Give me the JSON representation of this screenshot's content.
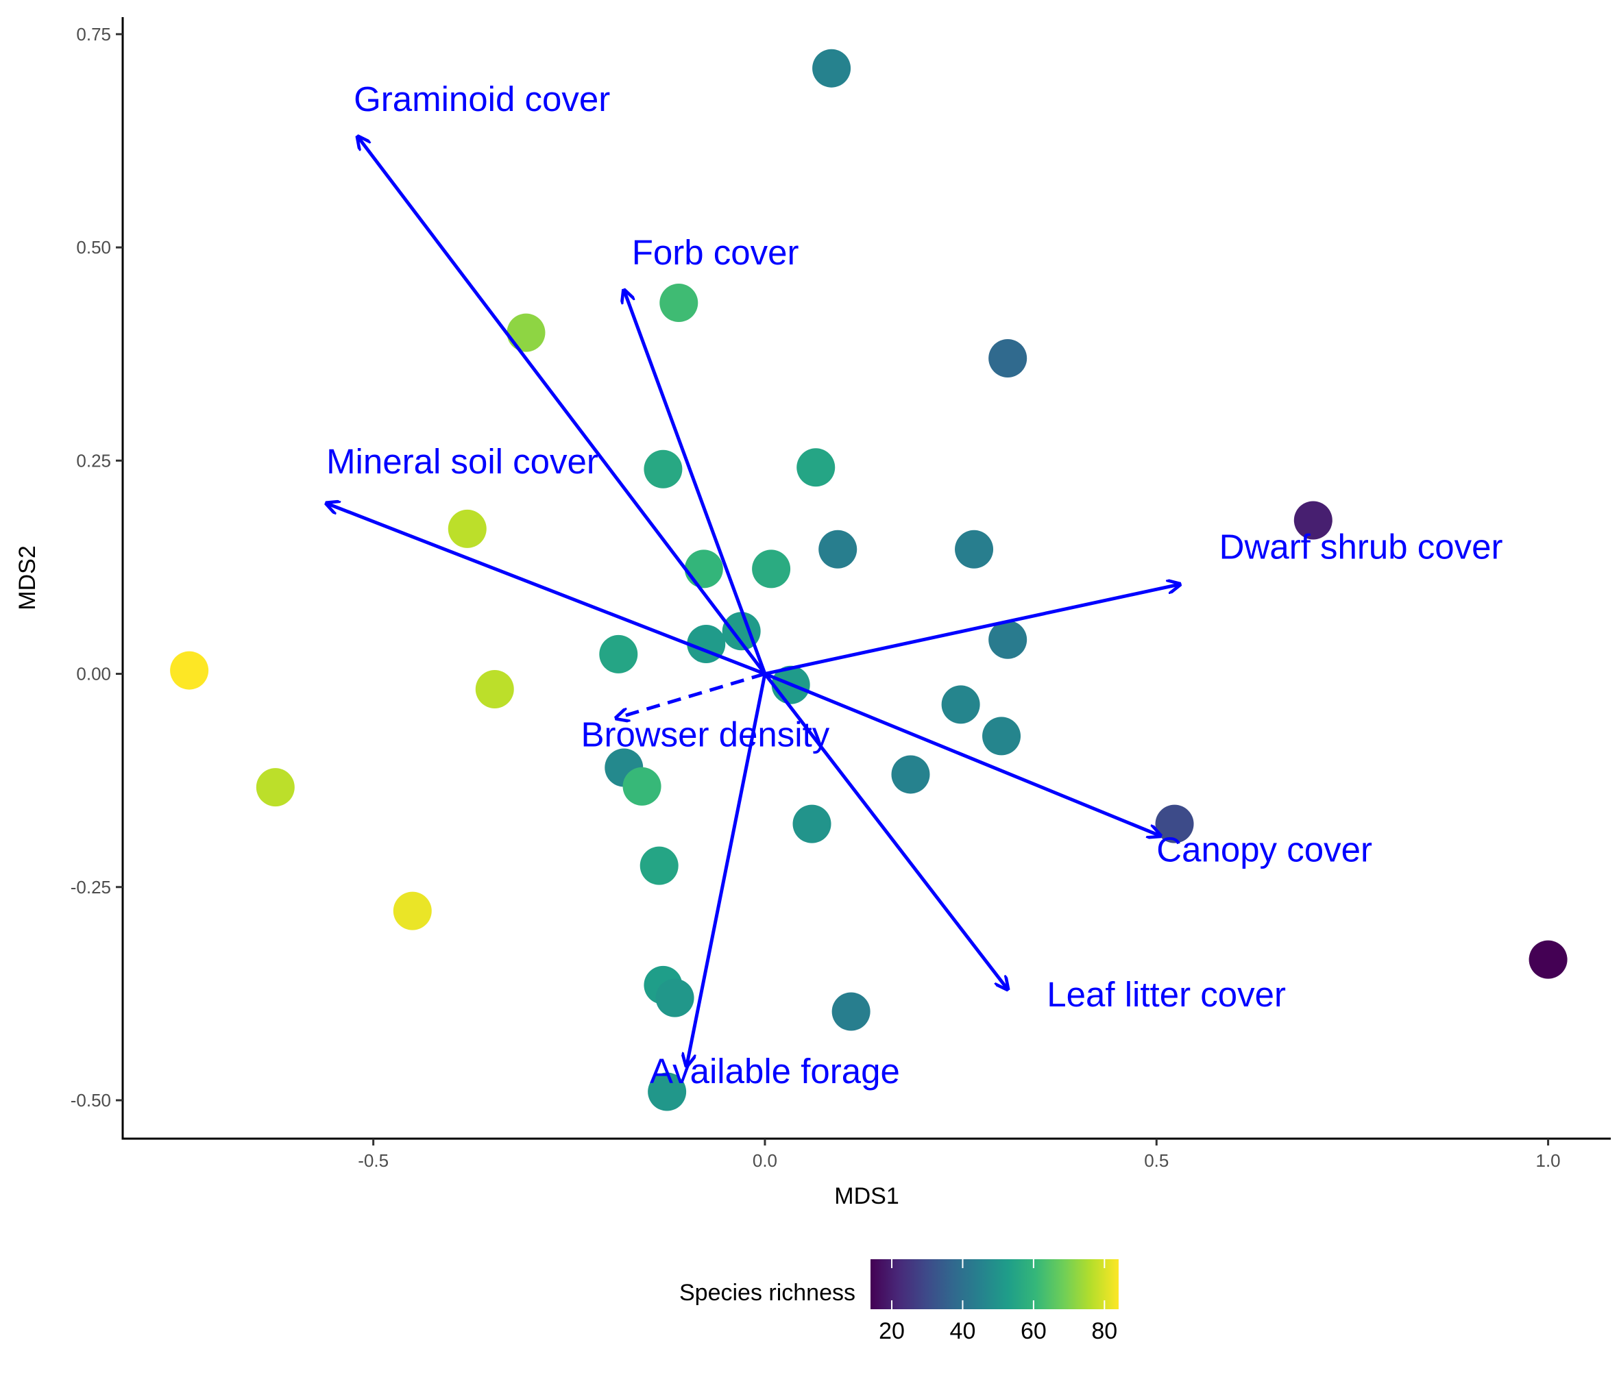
{
  "chart_data": {
    "type": "scatter",
    "xlabel": "MDS1",
    "ylabel": "MDS2",
    "xlim": [
      -0.82,
      1.08
    ],
    "ylim": [
      -0.545,
      0.77
    ],
    "x_ticks": [
      -0.5,
      0.0,
      0.5,
      1.0
    ],
    "x_tick_labels": [
      "-0.5",
      "0.0",
      "0.5",
      "1.0"
    ],
    "y_ticks": [
      -0.5,
      -0.25,
      0.0,
      0.25,
      0.5,
      0.75
    ],
    "y_tick_labels": [
      "-0.50",
      "-0.25",
      "0.00",
      "0.25",
      "0.50",
      "0.75"
    ],
    "grid": false,
    "points": [
      {
        "x": 0.085,
        "y": 0.71,
        "richness": 45
      },
      {
        "x": -0.11,
        "y": 0.435,
        "richness": 62
      },
      {
        "x": -0.305,
        "y": 0.4,
        "richness": 72
      },
      {
        "x": 0.31,
        "y": 0.37,
        "richness": 38
      },
      {
        "x": -0.13,
        "y": 0.24,
        "richness": 56
      },
      {
        "x": 0.065,
        "y": 0.242,
        "richness": 55
      },
      {
        "x": -0.38,
        "y": 0.17,
        "richness": 77
      },
      {
        "x": 0.093,
        "y": 0.146,
        "richness": 44
      },
      {
        "x": 0.267,
        "y": 0.146,
        "richness": 44
      },
      {
        "x": 0.7,
        "y": 0.18,
        "richness": 20
      },
      {
        "x": -0.078,
        "y": 0.123,
        "richness": 60
      },
      {
        "x": 0.008,
        "y": 0.123,
        "richness": 57
      },
      {
        "x": -0.03,
        "y": 0.05,
        "richness": 52
      },
      {
        "x": -0.075,
        "y": 0.035,
        "richness": 52
      },
      {
        "x": -0.187,
        "y": 0.023,
        "richness": 55
      },
      {
        "x": 0.31,
        "y": 0.04,
        "richness": 43
      },
      {
        "x": 0.033,
        "y": -0.013,
        "richness": 52
      },
      {
        "x": -0.735,
        "y": 0.004,
        "richness": 84
      },
      {
        "x": -0.345,
        "y": -0.018,
        "richness": 77
      },
      {
        "x": 0.25,
        "y": -0.036,
        "richness": 46
      },
      {
        "x": 0.302,
        "y": -0.073,
        "richness": 46
      },
      {
        "x": -0.18,
        "y": -0.11,
        "richness": 47
      },
      {
        "x": -0.157,
        "y": -0.132,
        "richness": 61
      },
      {
        "x": 0.186,
        "y": -0.118,
        "richness": 45
      },
      {
        "x": -0.625,
        "y": -0.133,
        "richness": 77
      },
      {
        "x": 0.06,
        "y": -0.176,
        "richness": 50
      },
      {
        "x": 0.523,
        "y": -0.176,
        "richness": 30
      },
      {
        "x": -0.135,
        "y": -0.225,
        "richness": 55
      },
      {
        "x": -0.45,
        "y": -0.278,
        "richness": 82
      },
      {
        "x": 1.0,
        "y": -0.335,
        "richness": 14
      },
      {
        "x": -0.13,
        "y": -0.365,
        "richness": 53
      },
      {
        "x": -0.115,
        "y": -0.38,
        "richness": 51
      },
      {
        "x": 0.11,
        "y": -0.396,
        "richness": 44
      },
      {
        "x": -0.125,
        "y": -0.49,
        "richness": 51
      }
    ],
    "vectors": [
      {
        "label": "Graminoid cover",
        "x": -0.52,
        "y": 0.63,
        "dashed": false,
        "label_x": -0.525,
        "label_y": 0.66
      },
      {
        "label": "Forb cover",
        "x": -0.18,
        "y": 0.45,
        "dashed": false,
        "label_x": -0.17,
        "label_y": 0.48
      },
      {
        "label": "Mineral soil cover",
        "x": -0.56,
        "y": 0.2,
        "dashed": false,
        "label_x": -0.56,
        "label_y": 0.235
      },
      {
        "label": "Dwarf shrub cover",
        "x": 0.53,
        "y": 0.105,
        "dashed": false,
        "label_x": 0.58,
        "label_y": 0.135
      },
      {
        "label": "Browser density",
        "x": -0.19,
        "y": -0.052,
        "dashed": true,
        "label_x": -0.235,
        "label_y": -0.085
      },
      {
        "label": "Canopy cover",
        "x": 0.505,
        "y": -0.19,
        "dashed": false,
        "label_x": 0.5,
        "label_y": -0.22
      },
      {
        "label": "Leaf litter cover",
        "x": 0.31,
        "y": -0.37,
        "dashed": false,
        "label_x": 0.36,
        "label_y": -0.39
      },
      {
        "label": "Available forage",
        "x": -0.1,
        "y": -0.46,
        "dashed": false,
        "label_x": -0.147,
        "label_y": -0.48
      }
    ],
    "vector_color": "#0000ff",
    "legend": {
      "title": "Species richness",
      "placement": "bottom",
      "min": 14,
      "max": 84,
      "ticks": [
        20,
        40,
        60,
        80
      ],
      "tick_labels": [
        "20",
        "40",
        "60",
        "80"
      ],
      "palette": [
        "#440154",
        "#482878",
        "#3e4989",
        "#31688e",
        "#26828e",
        "#1f9e89",
        "#35b779",
        "#6ece58",
        "#b5de2b",
        "#fde725"
      ]
    }
  }
}
